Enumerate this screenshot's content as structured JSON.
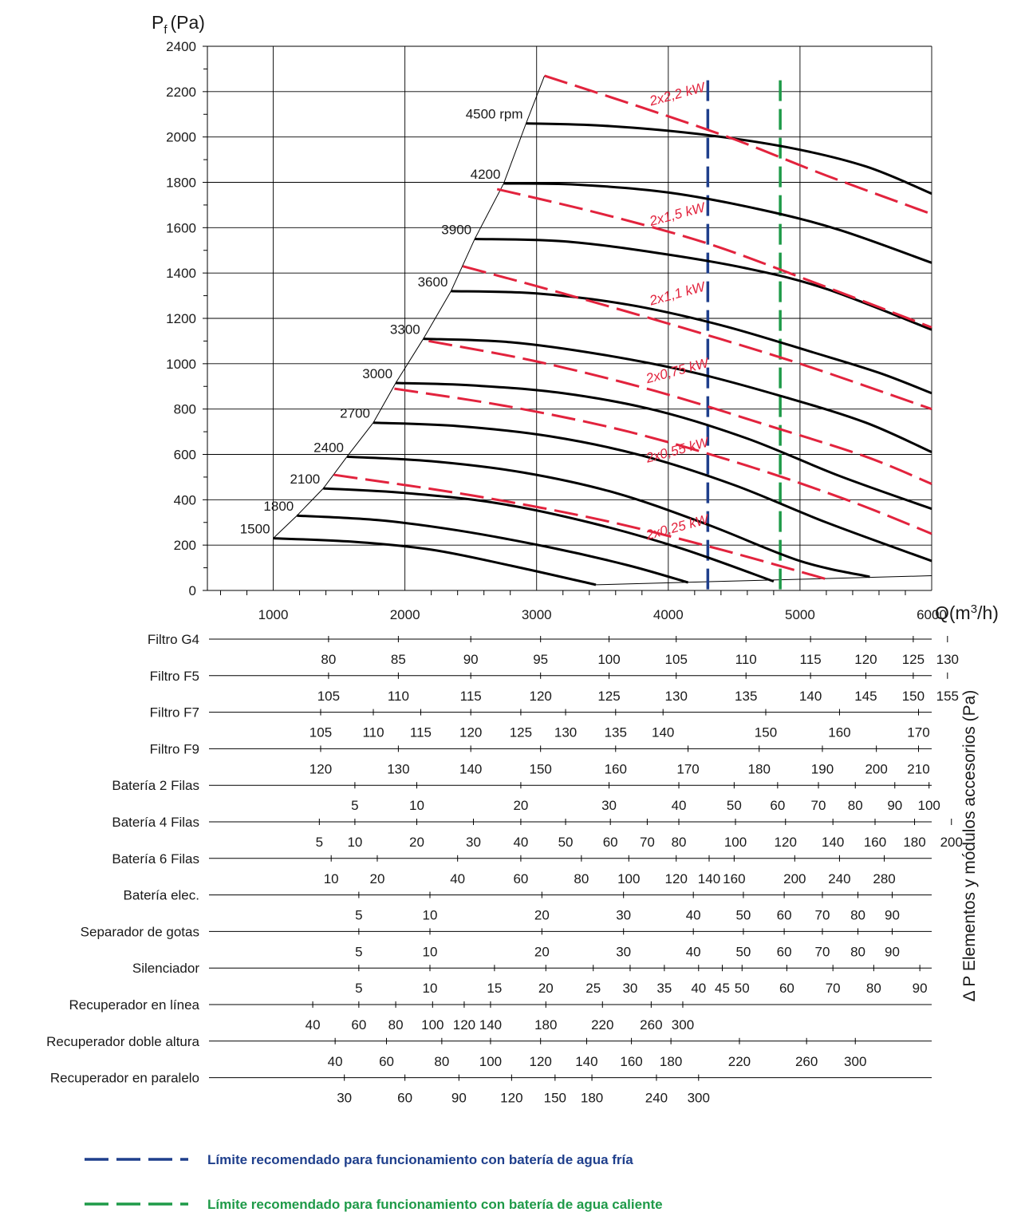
{
  "chart_data": {
    "type": "line",
    "ylabel": "P",
    "ylabel_sub": "f",
    "ylabel_unit": "(Pa)",
    "xlabel": "Q(m",
    "xlabel_sup": "3",
    "xlabel_end": "/h)",
    "xlim": [
      500,
      6000
    ],
    "ylim": [
      0,
      2400
    ],
    "x_ticks": [
      "1000",
      "2000",
      "3000",
      "4000",
      "5000",
      "6000"
    ],
    "y_ticks": [
      "0",
      "200",
      "400",
      "600",
      "800",
      "1000",
      "1200",
      "1400",
      "1600",
      "1800",
      "2000",
      "2200",
      "2400"
    ],
    "grid": true,
    "colors": {
      "rpm_curve": "#000000",
      "power_curve": "#e2233d",
      "cold_limit": "#1f3f8c",
      "hot_limit": "#1e9a48"
    },
    "rpm_curves": [
      {
        "name": "1500",
        "points": [
          [
            1000,
            230
          ],
          [
            1600,
            215
          ],
          [
            2200,
            180
          ],
          [
            2800,
            110
          ],
          [
            3450,
            25
          ]
        ]
      },
      {
        "name": "1800",
        "points": [
          [
            1180,
            330
          ],
          [
            1800,
            310
          ],
          [
            2400,
            265
          ],
          [
            3100,
            190
          ],
          [
            3700,
            110
          ],
          [
            4150,
            35
          ]
        ]
      },
      {
        "name": "2100",
        "points": [
          [
            1380,
            450
          ],
          [
            2000,
            430
          ],
          [
            2700,
            385
          ],
          [
            3400,
            300
          ],
          [
            4100,
            185
          ],
          [
            4800,
            40
          ]
        ]
      },
      {
        "name": "2400",
        "points": [
          [
            1560,
            590
          ],
          [
            2200,
            570
          ],
          [
            2900,
            520
          ],
          [
            3600,
            430
          ],
          [
            4300,
            290
          ],
          [
            5000,
            130
          ],
          [
            5530,
            60
          ]
        ]
      },
      {
        "name": "2700",
        "points": [
          [
            1760,
            740
          ],
          [
            2400,
            725
          ],
          [
            3100,
            680
          ],
          [
            3800,
            595
          ],
          [
            4500,
            465
          ],
          [
            5200,
            300
          ],
          [
            6000,
            130
          ]
        ]
      },
      {
        "name": "3000",
        "points": [
          [
            1930,
            915
          ],
          [
            2500,
            905
          ],
          [
            3200,
            870
          ],
          [
            3900,
            795
          ],
          [
            4600,
            670
          ],
          [
            5300,
            505
          ],
          [
            6000,
            360
          ]
        ]
      },
      {
        "name": "3300",
        "points": [
          [
            2140,
            1110
          ],
          [
            2800,
            1095
          ],
          [
            3500,
            1040
          ],
          [
            4200,
            960
          ],
          [
            4900,
            850
          ],
          [
            5500,
            740
          ],
          [
            6000,
            610
          ]
        ]
      },
      {
        "name": "3600",
        "points": [
          [
            2350,
            1320
          ],
          [
            3000,
            1310
          ],
          [
            3700,
            1260
          ],
          [
            4400,
            1170
          ],
          [
            5100,
            1050
          ],
          [
            5600,
            960
          ],
          [
            6000,
            870
          ]
        ]
      },
      {
        "name": "3900",
        "points": [
          [
            2530,
            1550
          ],
          [
            3200,
            1540
          ],
          [
            3900,
            1490
          ],
          [
            4600,
            1420
          ],
          [
            5200,
            1330
          ],
          [
            6000,
            1150
          ]
        ]
      },
      {
        "name": "4200",
        "points": [
          [
            2750,
            1795
          ],
          [
            3300,
            1790
          ],
          [
            4000,
            1755
          ],
          [
            4700,
            1680
          ],
          [
            5300,
            1590
          ],
          [
            6000,
            1445
          ]
        ]
      },
      {
        "name": "4500 rpm",
        "points": [
          [
            2920,
            2060
          ],
          [
            3500,
            2050
          ],
          [
            4200,
            2015
          ],
          [
            4900,
            1955
          ],
          [
            5500,
            1870
          ],
          [
            6000,
            1750
          ]
        ]
      }
    ],
    "rpm_label_positions": [
      [
        1500,
        1000,
        230
      ],
      [
        1800,
        1180,
        330
      ],
      [
        2100,
        1380,
        450
      ],
      [
        2400,
        1560,
        590
      ],
      [
        2700,
        1760,
        740
      ],
      [
        3000,
        1930,
        915
      ],
      [
        3300,
        2140,
        1110
      ],
      [
        3600,
        2350,
        1320
      ],
      [
        3900,
        2530,
        1550
      ],
      [
        4200,
        2750,
        1795
      ],
      [
        4500,
        2920,
        2060
      ]
    ],
    "power_curves": [
      {
        "name": "2x0,25 kW",
        "points": [
          [
            1460,
            510
          ],
          [
            2500,
            420
          ],
          [
            3500,
            310
          ],
          [
            4400,
            180
          ],
          [
            5200,
            50
          ]
        ]
      },
      {
        "name": "2x0,55 kW",
        "points": [
          [
            1920,
            890
          ],
          [
            2800,
            810
          ],
          [
            3700,
            700
          ],
          [
            4600,
            550
          ],
          [
            5400,
            390
          ],
          [
            6000,
            250
          ]
        ]
      },
      {
        "name": "2x0,75 kW",
        "points": [
          [
            2180,
            1100
          ],
          [
            3000,
            1010
          ],
          [
            3900,
            880
          ],
          [
            4800,
            720
          ],
          [
            5500,
            590
          ],
          [
            6000,
            470
          ]
        ]
      },
      {
        "name": "2x1,1 kW",
        "points": [
          [
            2440,
            1430
          ],
          [
            3200,
            1310
          ],
          [
            4100,
            1160
          ],
          [
            5000,
            1000
          ],
          [
            6000,
            800
          ]
        ]
      },
      {
        "name": "2x1,5 kW",
        "points": [
          [
            2700,
            1770
          ],
          [
            3500,
            1660
          ],
          [
            4300,
            1530
          ],
          [
            5100,
            1360
          ],
          [
            6000,
            1160
          ]
        ]
      },
      {
        "name": "2x2,2 kW",
        "points": [
          [
            3060,
            2270
          ],
          [
            3800,
            2130
          ],
          [
            4500,
            1990
          ],
          [
            5200,
            1830
          ],
          [
            6000,
            1660
          ]
        ]
      }
    ],
    "power_label_anchors": [
      [
        4500,
        260,
        -15
      ],
      [
        4500,
        600,
        -15
      ],
      [
        4500,
        950,
        -15
      ],
      [
        4500,
        1290,
        -15
      ],
      [
        4500,
        1640,
        -15
      ],
      [
        4500,
        2170,
        -15
      ]
    ],
    "boundary_line": [
      [
        1000,
        230
      ],
      [
        1180,
        330
      ],
      [
        1380,
        450
      ],
      [
        1560,
        590
      ],
      [
        1760,
        740
      ],
      [
        1930,
        915
      ],
      [
        2140,
        1110
      ],
      [
        2350,
        1320
      ],
      [
        2530,
        1550
      ],
      [
        2750,
        1795
      ],
      [
        2920,
        2060
      ],
      [
        3060,
        2270
      ]
    ],
    "bottom_line": [
      [
        3450,
        25
      ],
      [
        6000,
        65
      ]
    ],
    "cold_limit_x": 4300,
    "hot_limit_x": 4850,
    "limit_top_y": 2250
  },
  "accessories": {
    "title": "Δ P Elementos y módulos accesorios (Pa)",
    "rows": [
      {
        "label": "Filtro G4",
        "values": [
          [
            "80",
            1420
          ],
          [
            "85",
            1950
          ],
          [
            "90",
            2500
          ],
          [
            "95",
            3030
          ],
          [
            "100",
            3550
          ],
          [
            "105",
            4060
          ],
          [
            "110",
            4590
          ],
          [
            "115",
            5080
          ],
          [
            "120",
            5500
          ],
          [
            "125",
            5860
          ],
          [
            "130",
            6120
          ]
        ]
      },
      {
        "label": "Filtro F5",
        "values": [
          [
            "105",
            1420
          ],
          [
            "110",
            1950
          ],
          [
            "115",
            2500
          ],
          [
            "120",
            3030
          ],
          [
            "125",
            3550
          ],
          [
            "130",
            4060
          ],
          [
            "135",
            4590
          ],
          [
            "140",
            5080
          ],
          [
            "145",
            5500
          ],
          [
            "150",
            5860
          ],
          [
            "155",
            6120
          ]
        ]
      },
      {
        "label": "Filtro F7",
        "values": [
          [
            "105",
            1360
          ],
          [
            "110",
            1760
          ],
          [
            "115",
            2120
          ],
          [
            "120",
            2500
          ],
          [
            "125",
            2880
          ],
          [
            "130",
            3220
          ],
          [
            "135",
            3600
          ],
          [
            "140",
            3960
          ],
          [
            "150",
            4740
          ],
          [
            "160",
            5300
          ],
          [
            "170",
            5900
          ]
        ]
      },
      {
        "label": "Filtro F9",
        "values": [
          [
            "120",
            1360
          ],
          [
            "130",
            1950
          ],
          [
            "140",
            2500
          ],
          [
            "150",
            3030
          ],
          [
            "160",
            3600
          ],
          [
            "170",
            4150
          ],
          [
            "180",
            4690
          ],
          [
            "190",
            5170
          ],
          [
            "200",
            5580
          ],
          [
            "210",
            5900
          ]
        ]
      },
      {
        "label": "Batería 2 Filas",
        "values": [
          [
            "5",
            1620
          ],
          [
            "10",
            2090
          ],
          [
            "20",
            2880
          ],
          [
            "30",
            3550
          ],
          [
            "40",
            4080
          ],
          [
            "50",
            4500
          ],
          [
            "60",
            4830
          ],
          [
            "70",
            5140
          ],
          [
            "80",
            5420
          ],
          [
            "90",
            5720
          ],
          [
            "100",
            5980
          ]
        ]
      },
      {
        "label": "Batería 4 Filas",
        "values": [
          [
            "5",
            1350
          ],
          [
            "10",
            1620
          ],
          [
            "20",
            2090
          ],
          [
            "30",
            2520
          ],
          [
            "40",
            2880
          ],
          [
            "50",
            3220
          ],
          [
            "60",
            3560
          ],
          [
            "70",
            3840
          ],
          [
            "80",
            4080
          ],
          [
            "100",
            4510
          ],
          [
            "120",
            4890
          ],
          [
            "140",
            5250
          ],
          [
            "160",
            5570
          ],
          [
            "180",
            5870
          ],
          [
            "200",
            6150
          ]
        ]
      },
      {
        "label": "Batería 6 Filas",
        "values": [
          [
            "10",
            1440
          ],
          [
            "20",
            1790
          ],
          [
            "40",
            2400
          ],
          [
            "60",
            2880
          ],
          [
            "80",
            3340
          ],
          [
            "100",
            3700
          ],
          [
            "120",
            4060
          ],
          [
            "140",
            4310
          ],
          [
            "160",
            4500
          ],
          [
            "200",
            4960
          ],
          [
            "240",
            5300
          ],
          [
            "280",
            5640
          ]
        ]
      },
      {
        "label": "Batería elec.",
        "values": [
          [
            "5",
            1650
          ],
          [
            "10",
            2190
          ],
          [
            "20",
            3040
          ],
          [
            "30",
            3660
          ],
          [
            "40",
            4190
          ],
          [
            "50",
            4570
          ],
          [
            "60",
            4880
          ],
          [
            "70",
            5170
          ],
          [
            "80",
            5440
          ],
          [
            "90",
            5700
          ]
        ]
      },
      {
        "label": "Separador de gotas",
        "values": [
          [
            "5",
            1650
          ],
          [
            "10",
            2190
          ],
          [
            "20",
            3040
          ],
          [
            "30",
            3660
          ],
          [
            "40",
            4190
          ],
          [
            "50",
            4570
          ],
          [
            "60",
            4880
          ],
          [
            "70",
            5170
          ],
          [
            "80",
            5440
          ],
          [
            "90",
            5700
          ]
        ]
      },
      {
        "label": "Silenciador",
        "values": [
          [
            "5",
            1650
          ],
          [
            "10",
            2190
          ],
          [
            "15",
            2680
          ],
          [
            "20",
            3070
          ],
          [
            "25",
            3430
          ],
          [
            "30",
            3710
          ],
          [
            "35",
            3970
          ],
          [
            "40",
            4230
          ],
          [
            "45",
            4410
          ],
          [
            "50",
            4560
          ],
          [
            "60",
            4900
          ],
          [
            "70",
            5250
          ],
          [
            "80",
            5560
          ],
          [
            "90",
            5910
          ]
        ]
      },
      {
        "label": "Recuperador en línea",
        "values": [
          [
            "40",
            1300
          ],
          [
            "60",
            1650
          ],
          [
            "80",
            1930
          ],
          [
            "100",
            2210
          ],
          [
            "120",
            2450
          ],
          [
            "140",
            2650
          ],
          [
            "180",
            3070
          ],
          [
            "220",
            3500
          ],
          [
            "260",
            3870
          ],
          [
            "300",
            4110
          ]
        ]
      },
      {
        "label": "Recuperador doble altura",
        "values": [
          [
            "40",
            1470
          ],
          [
            "60",
            1860
          ],
          [
            "80",
            2280
          ],
          [
            "100",
            2650
          ],
          [
            "120",
            3030
          ],
          [
            "140",
            3380
          ],
          [
            "160",
            3720
          ],
          [
            "180",
            4020
          ],
          [
            "220",
            4540
          ],
          [
            "260",
            5050
          ],
          [
            "300",
            5420
          ]
        ]
      },
      {
        "label": "Recuperador en paralelo",
        "values": [
          [
            "30",
            1540
          ],
          [
            "60",
            2000
          ],
          [
            "90",
            2410
          ],
          [
            "120",
            2810
          ],
          [
            "150",
            3140
          ],
          [
            "180",
            3420
          ],
          [
            "240",
            3910
          ],
          [
            "300",
            4230
          ]
        ]
      }
    ]
  },
  "legend": [
    {
      "text": "Límite recomendado para funcionamiento con batería de agua fría",
      "color": "#1f3f8c"
    },
    {
      "text": "Límite recomendado para funcionamiento con batería de agua caliente",
      "color": "#1e9a48"
    }
  ]
}
